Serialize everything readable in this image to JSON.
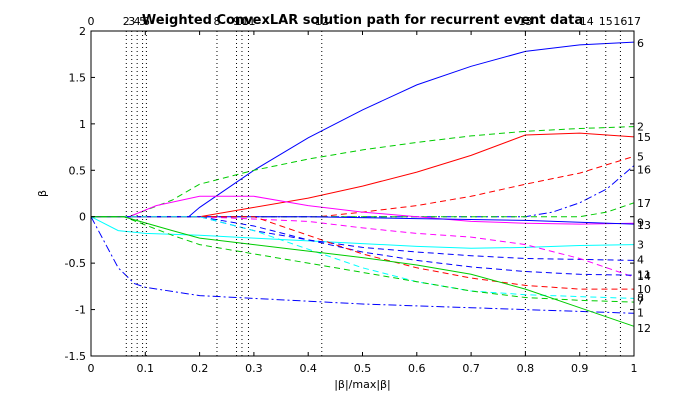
{
  "chart_data": {
    "type": "line",
    "title": "Weighted ConvexLAR solution path for recurrent event data",
    "xlabel": "|β|/max|β|",
    "ylabel": "β",
    "xlim": [
      0,
      1
    ],
    "ylim": [
      -1.5,
      2
    ],
    "x_ticks": [
      "0",
      "0.1",
      "0.2",
      "0.3",
      "0.4",
      "0.5",
      "0.6",
      "0.7",
      "0.8",
      "0.9",
      "1"
    ],
    "y_ticks": [
      "-1.5",
      "-1",
      "-0.5",
      "0",
      "0.5",
      "1",
      "1.5",
      "2"
    ],
    "grid": false,
    "legend": "none",
    "breakpoints": [
      {
        "x": 0.0,
        "label": "0"
      },
      {
        "x": 0.065,
        "label": "2"
      },
      {
        "x": 0.075,
        "label": "3"
      },
      {
        "x": 0.085,
        "label": "4"
      },
      {
        "x": 0.095,
        "label": "5"
      },
      {
        "x": 0.102,
        "label": "6"
      },
      {
        "x": 0.232,
        "label": "8"
      },
      {
        "x": 0.268,
        "label": "9"
      },
      {
        "x": 0.278,
        "label": "10"
      },
      {
        "x": 0.29,
        "label": "11"
      },
      {
        "x": 0.425,
        "label": "12"
      },
      {
        "x": 0.8,
        "label": "13"
      },
      {
        "x": 0.913,
        "label": "14"
      },
      {
        "x": 0.948,
        "label": "15"
      },
      {
        "x": 0.975,
        "label": "16"
      },
      {
        "x": 1.0,
        "label": "17"
      }
    ],
    "series": [
      {
        "label": "6",
        "color": "#0000ff",
        "dash": "solid",
        "points": [
          [
            0,
            0
          ],
          [
            0.18,
            0
          ],
          [
            0.2,
            0.1
          ],
          [
            0.3,
            0.5
          ],
          [
            0.4,
            0.85
          ],
          [
            0.5,
            1.15
          ],
          [
            0.6,
            1.42
          ],
          [
            0.7,
            1.62
          ],
          [
            0.8,
            1.78
          ],
          [
            0.9,
            1.85
          ],
          [
            1,
            1.88
          ]
        ]
      },
      {
        "label": "2",
        "color": "#00cc00",
        "dash": "dashed",
        "points": [
          [
            0,
            0
          ],
          [
            0.07,
            0
          ],
          [
            0.15,
            0.18
          ],
          [
            0.2,
            0.35
          ],
          [
            0.3,
            0.5
          ],
          [
            0.4,
            0.62
          ],
          [
            0.5,
            0.72
          ],
          [
            0.6,
            0.8
          ],
          [
            0.7,
            0.87
          ],
          [
            0.8,
            0.92
          ],
          [
            0.9,
            0.95
          ],
          [
            1,
            0.97
          ]
        ]
      },
      {
        "label": "15",
        "color": "#ff0000",
        "dash": "solid",
        "points": [
          [
            0,
            0
          ],
          [
            0.2,
            0
          ],
          [
            0.3,
            0.1
          ],
          [
            0.4,
            0.2
          ],
          [
            0.5,
            0.33
          ],
          [
            0.6,
            0.48
          ],
          [
            0.7,
            0.66
          ],
          [
            0.8,
            0.88
          ],
          [
            0.9,
            0.9
          ],
          [
            1,
            0.86
          ]
        ]
      },
      {
        "label": "5",
        "color": "#ff0000",
        "dash": "dashed",
        "points": [
          [
            0,
            0
          ],
          [
            0.42,
            0
          ],
          [
            0.5,
            0.05
          ],
          [
            0.6,
            0.12
          ],
          [
            0.7,
            0.22
          ],
          [
            0.8,
            0.35
          ],
          [
            0.9,
            0.47
          ],
          [
            1,
            0.65
          ]
        ]
      },
      {
        "label": "16",
        "color": "#0000ff",
        "dash": "dashdot",
        "points": [
          [
            0,
            0
          ],
          [
            0.8,
            0
          ],
          [
            0.85,
            0.05
          ],
          [
            0.9,
            0.15
          ],
          [
            0.95,
            0.3
          ],
          [
            1,
            0.55
          ]
        ]
      },
      {
        "label": "17",
        "color": "#00cc00",
        "dash": "dashed",
        "points": [
          [
            0,
            0
          ],
          [
            0.9,
            0
          ],
          [
            0.95,
            0.05
          ],
          [
            1,
            0.15
          ]
        ]
      },
      {
        "label": "9",
        "color": "#ff00ff",
        "dash": "solid",
        "points": [
          [
            0,
            0
          ],
          [
            0.07,
            0
          ],
          [
            0.12,
            0.12
          ],
          [
            0.2,
            0.22
          ],
          [
            0.3,
            0.22
          ],
          [
            0.4,
            0.12
          ],
          [
            0.5,
            0.05
          ],
          [
            0.6,
            0.0
          ],
          [
            0.7,
            -0.05
          ],
          [
            0.8,
            -0.07
          ],
          [
            0.9,
            -0.08
          ],
          [
            1,
            -0.07
          ]
        ]
      },
      {
        "label": "13",
        "color": "#0000ff",
        "dash": "solid",
        "points": [
          [
            0,
            0
          ],
          [
            0.2,
            0
          ],
          [
            0.4,
            0
          ],
          [
            0.6,
            -0.02
          ],
          [
            0.8,
            -0.04
          ],
          [
            1,
            -0.08
          ]
        ]
      },
      {
        "label": "3",
        "color": "#00ffff",
        "dash": "solid",
        "points": [
          [
            0,
            0
          ],
          [
            0.05,
            -0.15
          ],
          [
            0.1,
            -0.18
          ],
          [
            0.2,
            -0.2
          ],
          [
            0.3,
            -0.23
          ],
          [
            0.4,
            -0.26
          ],
          [
            0.5,
            -0.29
          ],
          [
            0.6,
            -0.32
          ],
          [
            0.7,
            -0.34
          ],
          [
            0.8,
            -0.33
          ],
          [
            0.9,
            -0.31
          ],
          [
            1,
            -0.3
          ]
        ]
      },
      {
        "label": "4",
        "color": "#0000ff",
        "dash": "dashed",
        "points": [
          [
            0,
            0
          ],
          [
            0.2,
            0
          ],
          [
            0.3,
            -0.15
          ],
          [
            0.4,
            -0.25
          ],
          [
            0.5,
            -0.33
          ],
          [
            0.6,
            -0.38
          ],
          [
            0.7,
            -0.42
          ],
          [
            0.8,
            -0.45
          ],
          [
            0.9,
            -0.46
          ],
          [
            1,
            -0.47
          ]
        ]
      },
      {
        "label": "11",
        "color": "#ff00ff",
        "dash": "dashed",
        "points": [
          [
            0,
            0
          ],
          [
            0.2,
            0
          ],
          [
            0.4,
            -0.05
          ],
          [
            0.5,
            -0.12
          ],
          [
            0.6,
            -0.18
          ],
          [
            0.7,
            -0.22
          ],
          [
            0.8,
            -0.3
          ],
          [
            0.9,
            -0.45
          ],
          [
            1,
            -0.65
          ]
        ]
      },
      {
        "label": "14",
        "color": "#0000ff",
        "dash": "dashed",
        "points": [
          [
            0,
            0
          ],
          [
            0.2,
            0
          ],
          [
            0.3,
            -0.1
          ],
          [
            0.4,
            -0.25
          ],
          [
            0.5,
            -0.38
          ],
          [
            0.6,
            -0.47
          ],
          [
            0.7,
            -0.54
          ],
          [
            0.8,
            -0.59
          ],
          [
            0.9,
            -0.62
          ],
          [
            1,
            -0.63
          ]
        ]
      },
      {
        "label": "10",
        "color": "#ff0000",
        "dash": "dashed",
        "points": [
          [
            0,
            0
          ],
          [
            0.3,
            0
          ],
          [
            0.4,
            -0.2
          ],
          [
            0.5,
            -0.4
          ],
          [
            0.6,
            -0.55
          ],
          [
            0.7,
            -0.66
          ],
          [
            0.8,
            -0.74
          ],
          [
            0.9,
            -0.78
          ],
          [
            1,
            -0.78
          ]
        ]
      },
      {
        "label": "8",
        "color": "#00ffff",
        "dash": "dashed",
        "points": [
          [
            0,
            0
          ],
          [
            0.2,
            0
          ],
          [
            0.3,
            -0.15
          ],
          [
            0.4,
            -0.35
          ],
          [
            0.5,
            -0.55
          ],
          [
            0.6,
            -0.7
          ],
          [
            0.7,
            -0.8
          ],
          [
            0.8,
            -0.84
          ],
          [
            0.9,
            -0.86
          ],
          [
            1,
            -0.88
          ]
        ]
      },
      {
        "label": "7",
        "color": "#00cc00",
        "dash": "dashed",
        "points": [
          [
            0,
            0
          ],
          [
            0.06,
            0
          ],
          [
            0.15,
            -0.2
          ],
          [
            0.2,
            -0.3
          ],
          [
            0.3,
            -0.4
          ],
          [
            0.4,
            -0.5
          ],
          [
            0.5,
            -0.6
          ],
          [
            0.6,
            -0.7
          ],
          [
            0.7,
            -0.8
          ],
          [
            0.8,
            -0.87
          ],
          [
            0.9,
            -0.9
          ],
          [
            1,
            -0.92
          ]
        ]
      },
      {
        "label": "1",
        "color": "#0000ff",
        "dash": "dashdot",
        "points": [
          [
            0,
            0
          ],
          [
            0.05,
            -0.55
          ],
          [
            0.08,
            -0.72
          ],
          [
            0.1,
            -0.76
          ],
          [
            0.2,
            -0.85
          ],
          [
            0.3,
            -0.88
          ],
          [
            0.4,
            -0.91
          ],
          [
            0.5,
            -0.94
          ],
          [
            0.6,
            -0.96
          ],
          [
            0.7,
            -0.98
          ],
          [
            0.8,
            -1.0
          ],
          [
            0.9,
            -1.02
          ],
          [
            1,
            -1.04
          ]
        ]
      },
      {
        "label": "12",
        "color": "#00cc00",
        "dash": "solid",
        "points": [
          [
            0,
            0
          ],
          [
            0.06,
            0
          ],
          [
            0.15,
            -0.15
          ],
          [
            0.2,
            -0.23
          ],
          [
            0.3,
            -0.3
          ],
          [
            0.4,
            -0.37
          ],
          [
            0.5,
            -0.44
          ],
          [
            0.6,
            -0.52
          ],
          [
            0.7,
            -0.62
          ],
          [
            0.8,
            -0.78
          ],
          [
            0.9,
            -0.98
          ],
          [
            1,
            -1.18
          ]
        ]
      }
    ],
    "right_labels": [
      {
        "text": "6",
        "y": 1.87
      },
      {
        "text": "2",
        "y": 0.97
      },
      {
        "text": "15",
        "y": 0.86
      },
      {
        "text": "5",
        "y": 0.65
      },
      {
        "text": "16",
        "y": 0.51
      },
      {
        "text": "17",
        "y": 0.15
      },
      {
        "text": "9",
        "y": -0.06
      },
      {
        "text": "13",
        "y": -0.09
      },
      {
        "text": "3",
        "y": -0.3
      },
      {
        "text": "4",
        "y": -0.46
      },
      {
        "text": "11",
        "y": -0.62
      },
      {
        "text": "14",
        "y": -0.64
      },
      {
        "text": "10",
        "y": -0.78
      },
      {
        "text": "8",
        "y": -0.87
      },
      {
        "text": "7",
        "y": -0.9
      },
      {
        "text": "1",
        "y": -1.03
      },
      {
        "text": "12",
        "y": -1.2
      }
    ]
  }
}
